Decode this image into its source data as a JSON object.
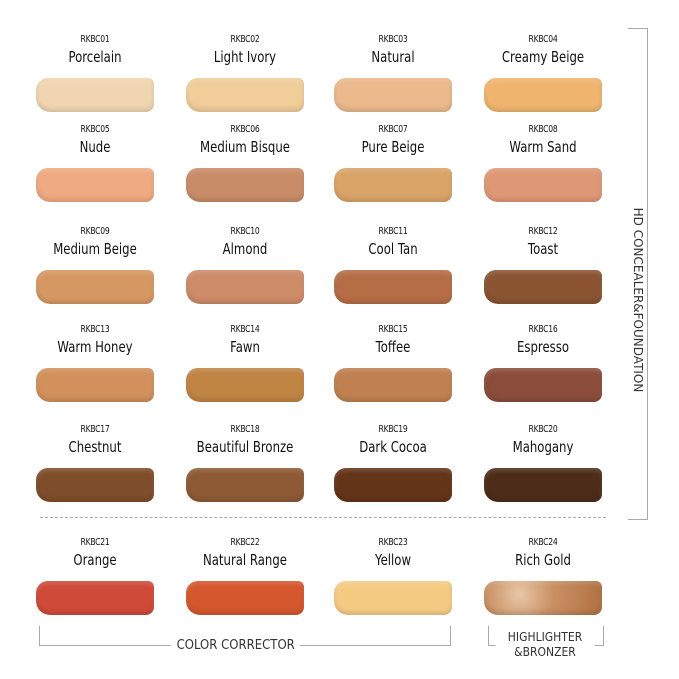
{
  "section_foundation": "HD CONCEALER&FOUNDATION",
  "section_corrector": "COLOR CORRECTOR",
  "section_highlighter_line1": "HIGHLIGHTER",
  "section_highlighter_line2": "&BRONZER",
  "shades": [
    {
      "code": "RKBC01",
      "name": "Porcelain",
      "color": "#f1d5b0"
    },
    {
      "code": "RKBC02",
      "name": "Light Ivory",
      "color": "#f1cd9a"
    },
    {
      "code": "RKBC03",
      "name": "Natural",
      "color": "#eab98c"
    },
    {
      "code": "RKBC04",
      "name": "Creamy Beige",
      "color": "#efb56f"
    },
    {
      "code": "RKBC05",
      "name": "Nude",
      "color": "#eeab82"
    },
    {
      "code": "RKBC06",
      "name": "Medium Bisque",
      "color": "#c98c68"
    },
    {
      "code": "RKBC07",
      "name": "Pure Beige",
      "color": "#d9a468"
    },
    {
      "code": "RKBC08",
      "name": "Warm Sand",
      "color": "#de9876"
    },
    {
      "code": "RKBC09",
      "name": "Medium Beige",
      "color": "#d69863"
    },
    {
      "code": "RKBC10",
      "name": "Almond",
      "color": "#cd8b68"
    },
    {
      "code": "RKBC11",
      "name": "Cool Tan",
      "color": "#b56d46"
    },
    {
      "code": "RKBC12",
      "name": "Toast",
      "color": "#8a5432"
    },
    {
      "code": "RKBC13",
      "name": "Warm Honey",
      "color": "#d2915c"
    },
    {
      "code": "RKBC14",
      "name": "Fawn",
      "color": "#c08443"
    },
    {
      "code": "RKBC15",
      "name": "Toffee",
      "color": "#c0804f"
    },
    {
      "code": "RKBC16",
      "name": "Espresso",
      "color": "#8b4d3a"
    },
    {
      "code": "RKBC17",
      "name": "Chestnut",
      "color": "#7e4d2a"
    },
    {
      "code": "RKBC18",
      "name": "Beautiful Bronze",
      "color": "#8d5a35"
    },
    {
      "code": "RKBC19",
      "name": "Dark Cocoa",
      "color": "#643419"
    },
    {
      "code": "RKBC20",
      "name": "Mahogany",
      "color": "#4e2c1a"
    },
    {
      "code": "RKBC21",
      "name": "Orange",
      "color": "#cf4a38"
    },
    {
      "code": "RKBC22",
      "name": "Natural Range",
      "color": "#d4572d"
    },
    {
      "code": "RKBC23",
      "name": "Yellow",
      "color": "#f5cb84"
    },
    {
      "code": "RKBC24",
      "name": "Rich Gold",
      "color": "#c99063"
    }
  ]
}
